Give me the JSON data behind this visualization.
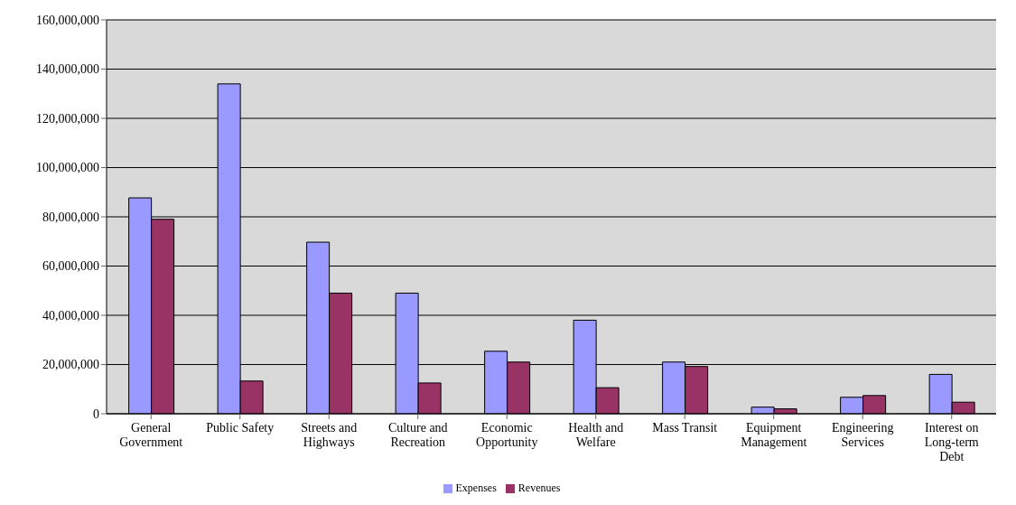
{
  "chart_data": {
    "type": "bar",
    "categories": [
      "General Government",
      "Public Safety",
      "Streets and Highways",
      "Culture and Recreation",
      "Economic Opportunity",
      "Health and Welfare",
      "Mass Transit",
      "Equipment Management",
      "Engineering Services",
      "Interest on Long-term Debt"
    ],
    "series": [
      {
        "name": "Expenses",
        "color": "#9999ff",
        "values": [
          87700000,
          134000000,
          69700000,
          49000000,
          25400000,
          38000000,
          21000000,
          2700000,
          6700000,
          16000000
        ]
      },
      {
        "name": "Revenues",
        "color": "#993366",
        "values": [
          79000000,
          13300000,
          49000000,
          12500000,
          21000000,
          10600000,
          19200000,
          2000000,
          7400000,
          4700000
        ]
      }
    ],
    "ylim": [
      0,
      160000000
    ],
    "yticks": [
      0,
      {
        "value": 20000000,
        "label": "20,000,000"
      },
      {
        "value": 40000000,
        "label": "40,000,000"
      },
      {
        "value": 60000000,
        "label": "60,000,000"
      },
      {
        "value": 80000000,
        "label": "80,000,000"
      },
      {
        "value": 100000000,
        "label": "100,000,000"
      },
      {
        "value": 120000000,
        "label": "120,000,000"
      },
      {
        "value": 140000000,
        "label": "140,000,000"
      },
      {
        "value": 160000000,
        "label": "160,000,000"
      }
    ],
    "grid": "y",
    "legend": "bottom"
  }
}
